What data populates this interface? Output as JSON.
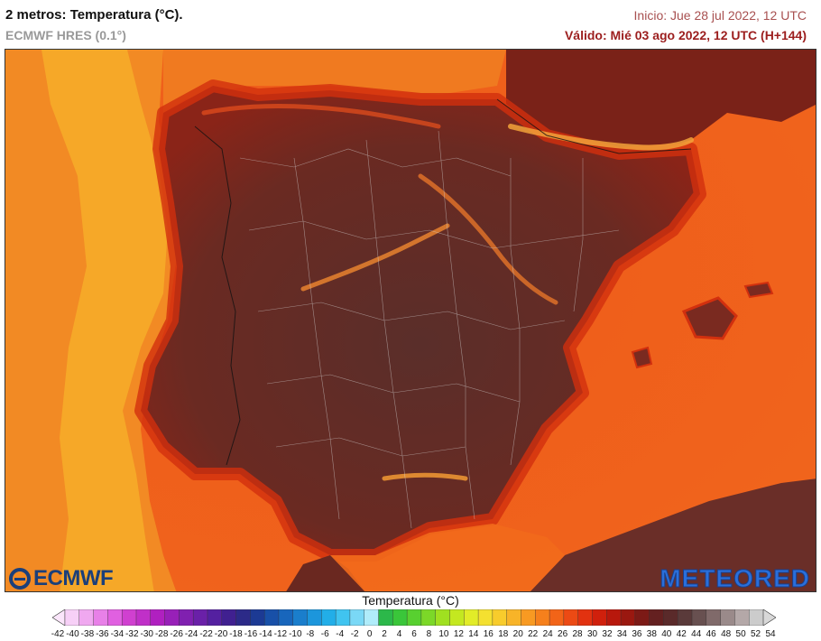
{
  "header": {
    "title": "2 metros: Temperatura (°C).",
    "model": "ECMWF HRES (0.1°)",
    "run": "Inicio: Jue 28 jul 2022, 12 UTC",
    "valid": "Válido: Mié 03 ago 2022, 12 UTC (H+144)"
  },
  "logos": {
    "left": "ECMWF",
    "right": "METEORED"
  },
  "legend": {
    "title": "Temperatura (°C)",
    "ticks": [
      "-42",
      "-40",
      "-38",
      "-36",
      "-34",
      "-32",
      "-30",
      "-28",
      "-26",
      "-24",
      "-22",
      "-20",
      "-18",
      "-16",
      "-14",
      "-12",
      "-10",
      "-8",
      "-6",
      "-4",
      "-2",
      "0",
      "2",
      "4",
      "6",
      "8",
      "10",
      "12",
      "14",
      "16",
      "18",
      "20",
      "22",
      "24",
      "26",
      "28",
      "30",
      "32",
      "34",
      "36",
      "38",
      "40",
      "42",
      "44",
      "46",
      "48",
      "50",
      "52",
      "54"
    ],
    "colors": [
      "#f7d0f7",
      "#f0a8f0",
      "#e880e8",
      "#e060e0",
      "#d040d0",
      "#c030c8",
      "#b020c0",
      "#9820b8",
      "#8020b0",
      "#6a20a8",
      "#5420a0",
      "#402090",
      "#2c2a88",
      "#1c3a94",
      "#1850a8",
      "#1866bc",
      "#1a7ecc",
      "#1c96dc",
      "#22aee8",
      "#40c4f0",
      "#7ad8f6",
      "#b0ecfa",
      "#2cb84a",
      "#3ac63a",
      "#58d030",
      "#7cd828",
      "#a0e020",
      "#c4e820",
      "#e2ec28",
      "#f4e030",
      "#f8cc2c",
      "#f8b428",
      "#f89a22",
      "#f6801c",
      "#f26418",
      "#ec4a14",
      "#e23210",
      "#d0200c",
      "#b8180c",
      "#9a1810",
      "#7c1a16",
      "#642020",
      "#5a2a2a",
      "#5a3a3a",
      "#685050",
      "#806a6a",
      "#9a8a8a",
      "#b4a8a8",
      "#cccccc"
    ]
  }
}
